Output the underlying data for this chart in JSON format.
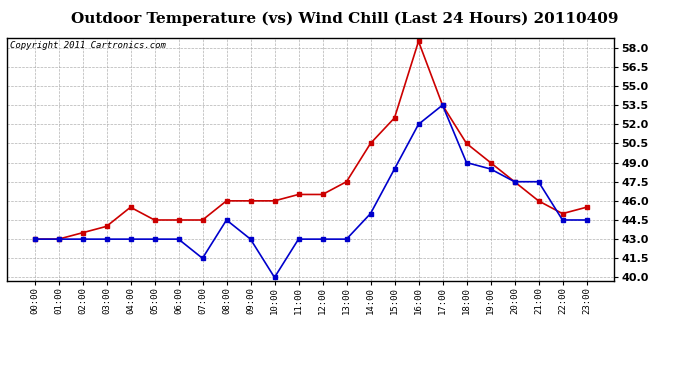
{
  "title": "Outdoor Temperature (vs) Wind Chill (Last 24 Hours) 20110409",
  "copyright": "Copyright 2011 Cartronics.com",
  "hours": [
    "00:00",
    "01:00",
    "02:00",
    "03:00",
    "04:00",
    "05:00",
    "06:00",
    "07:00",
    "08:00",
    "09:00",
    "10:00",
    "11:00",
    "12:00",
    "13:00",
    "14:00",
    "15:00",
    "16:00",
    "17:00",
    "18:00",
    "19:00",
    "20:00",
    "21:00",
    "22:00",
    "23:00"
  ],
  "temp": [
    43.0,
    43.0,
    43.5,
    44.0,
    45.5,
    44.5,
    44.5,
    44.5,
    46.0,
    46.0,
    46.0,
    46.5,
    46.5,
    47.5,
    50.5,
    52.5,
    58.5,
    53.5,
    50.5,
    49.0,
    47.5,
    46.0,
    45.0,
    45.5
  ],
  "wind_chill": [
    43.0,
    43.0,
    43.0,
    43.0,
    43.0,
    43.0,
    43.0,
    41.5,
    44.5,
    43.0,
    40.0,
    43.0,
    43.0,
    43.0,
    45.0,
    48.5,
    52.0,
    53.5,
    49.0,
    48.5,
    47.5,
    47.5,
    44.5,
    44.5
  ],
  "temp_color": "#cc0000",
  "wind_chill_color": "#0000cc",
  "ylim_min": 40.0,
  "ylim_max": 58.5,
  "yticks": [
    40.0,
    41.5,
    43.0,
    44.5,
    46.0,
    47.5,
    49.0,
    50.5,
    52.0,
    53.5,
    55.0,
    56.5,
    58.0
  ],
  "bg_color": "#ffffff",
  "grid_color": "#aaaaaa",
  "title_fontsize": 11,
  "copyright_fontsize": 6.5
}
